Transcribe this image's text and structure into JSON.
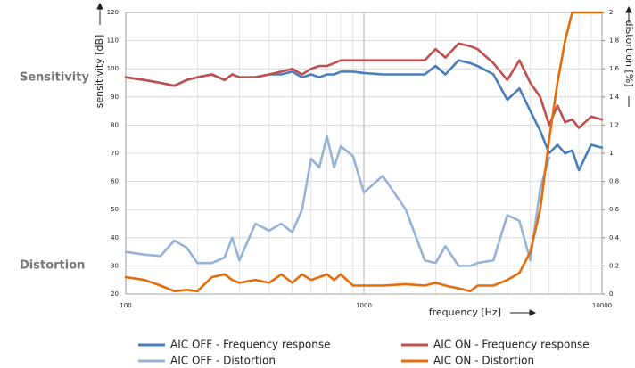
{
  "chart_data": {
    "type": "line",
    "side_labels": [
      "Sensitivity",
      "Distortion"
    ],
    "ylabel": "sensitivity [dB]",
    "y2label": "distortion [%]",
    "xlabel": "frequency [Hz]",
    "xscale": "log",
    "xlim": [
      100,
      10000
    ],
    "xticks": [
      100,
      1000,
      10000
    ],
    "xminorticks": [
      200,
      300,
      400,
      500,
      600,
      700,
      800,
      900,
      2000,
      3000,
      4000,
      5000,
      6000,
      7000,
      8000,
      9000
    ],
    "ylim": [
      20,
      120
    ],
    "yticks": [
      20,
      30,
      40,
      50,
      60,
      70,
      80,
      90,
      100,
      110,
      120
    ],
    "y2lim": [
      0,
      2
    ],
    "y2ticks": [
      0,
      {
        "value": 0.2,
        "label": "0,2"
      },
      {
        "value": 0.4,
        "label": "0,4"
      },
      {
        "value": 0.6,
        "label": "0,6"
      },
      {
        "value": 0.8,
        "label": "0,8"
      },
      1,
      {
        "value": 1.2,
        "label": "1,2"
      },
      {
        "value": 1.4,
        "label": "1,4"
      },
      {
        "value": 1.6,
        "label": "1,6"
      },
      {
        "value": 1.8,
        "label": "1,8"
      },
      2
    ],
    "grid": true,
    "legend": "bottom",
    "x": [
      100,
      120,
      140,
      160,
      180,
      200,
      230,
      260,
      280,
      300,
      350,
      400,
      450,
      500,
      550,
      600,
      650,
      700,
      750,
      800,
      900,
      1000,
      1200,
      1500,
      1800,
      2000,
      2200,
      2500,
      2800,
      3000,
      3500,
      4000,
      4500,
      5000,
      5500,
      6000,
      6500,
      7000,
      7500,
      8000,
      9000,
      10000
    ],
    "series": [
      {
        "name": "AIC OFF - Frequency response",
        "color": "#4a7ebb",
        "values": [
          97,
          96,
          95,
          94,
          96,
          97,
          98,
          96,
          98,
          97,
          97,
          98,
          98,
          99,
          97,
          98,
          97,
          98,
          98,
          99,
          99,
          98.5,
          98,
          98,
          98,
          101,
          98,
          103,
          102,
          101,
          98,
          89,
          93,
          85,
          78,
          70,
          73,
          70,
          71,
          64,
          73,
          72
        ]
      },
      {
        "name": "AIC ON - Frequency response",
        "color": "#c0504d",
        "values": [
          97,
          96,
          95,
          94,
          96,
          97,
          98,
          96,
          98,
          97,
          97,
          98,
          99,
          100,
          98,
          100,
          101,
          101,
          102,
          103,
          103,
          103,
          103,
          103,
          103,
          107,
          104,
          109,
          108,
          107,
          102,
          96,
          103,
          95,
          90,
          80,
          87,
          81,
          82,
          79,
          83,
          82
        ]
      },
      {
        "name": "AIC OFF - Distortion",
        "color": "#95b3d7",
        "axis": "y2",
        "values": [
          0.3,
          0.28,
          0.27,
          0.38,
          0.33,
          0.22,
          0.22,
          0.26,
          0.4,
          0.24,
          0.5,
          0.45,
          0.5,
          0.44,
          0.6,
          0.96,
          0.9,
          1.12,
          0.9,
          1.05,
          0.98,
          0.72,
          0.84,
          0.6,
          0.24,
          0.22,
          0.34,
          0.2,
          0.2,
          0.22,
          0.24,
          0.56,
          0.52,
          0.24,
          0.75,
          0.97,
          null,
          null,
          null,
          null,
          null,
          null
        ]
      },
      {
        "name": "AIC ON - Distortion",
        "color": "#e46c0a",
        "axis": "y2",
        "values": [
          0.12,
          0.1,
          0.06,
          0.02,
          0.03,
          0.02,
          0.12,
          0.14,
          0.1,
          0.08,
          0.1,
          0.08,
          0.14,
          0.08,
          0.14,
          0.1,
          0.12,
          0.14,
          0.1,
          0.14,
          0.06,
          0.06,
          0.06,
          0.07,
          0.06,
          0.08,
          0.06,
          0.04,
          0.02,
          0.06,
          0.06,
          0.1,
          0.15,
          0.3,
          0.6,
          1.1,
          1.5,
          1.8,
          2,
          2,
          2,
          2
        ]
      }
    ]
  }
}
